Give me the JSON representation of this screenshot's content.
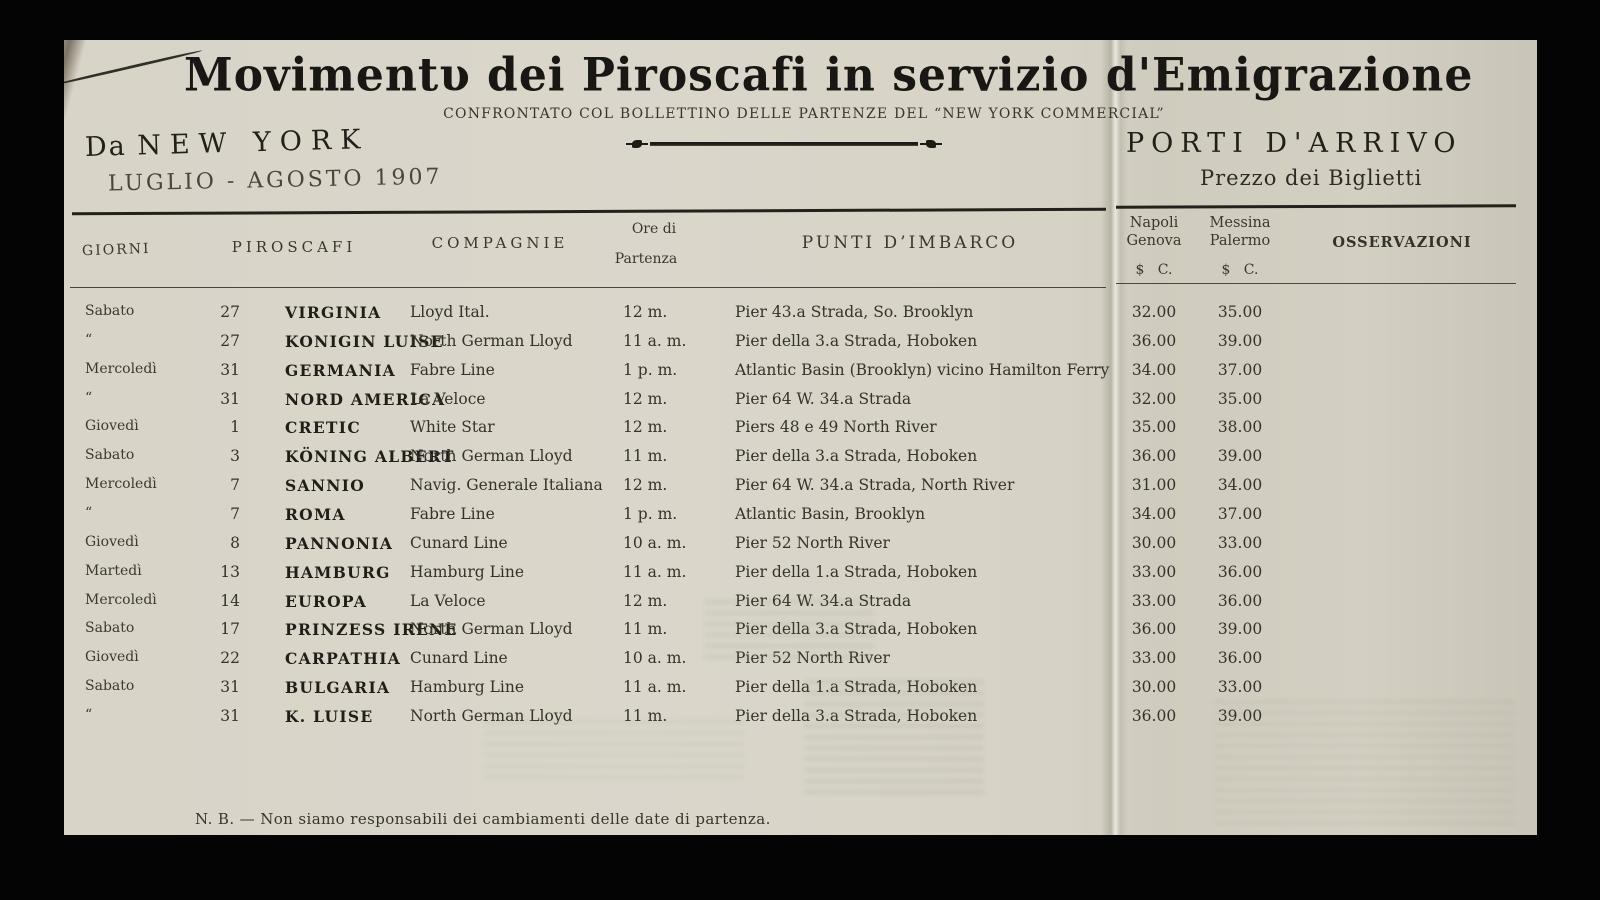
{
  "page": {
    "title": "Movimentυ dei Piroscafi in servizio d'Emigrazione",
    "subtitle": "CONFRONTATO COL BOLLETTINO DELLE PARTENZE DEL “NEW YORK COMMERCIAL”",
    "origin_prefix": "Da",
    "origin": "NEW YORK",
    "period": "LUGLIO - AGOSTO 1907",
    "arrival_title": "PORTI D'ARRIVO",
    "arrival_subtitle": "Prezzo dei Biglietti",
    "footnote": "N. B. — Non siamo responsabili dei cambiamenti delle date di partenza."
  },
  "table": {
    "headers": {
      "giorni": "GIORNI",
      "piroscafi": "PIROSCAFI",
      "compagnie": "COMPAGNIE",
      "ore_line1": "Ore di",
      "ore_line2": "Partenza",
      "punti": "PUNTI  D’IMBARCO",
      "price1_line1": "Napoli",
      "price1_line2": "Genova",
      "price2_line1": "Messina",
      "price2_line2": "Palermo",
      "currency": "$   C.",
      "osservazioni": "OSSERVAZIONI"
    },
    "rows": [
      {
        "day": "Sabato",
        "date": "27",
        "ship": "VIRGINIA",
        "company": "Lloyd Ital.",
        "time": "12 m.",
        "pier": "Pier 43.a Strada, So. Brooklyn",
        "napoli_genova": "32.00",
        "messina_palermo": "35.00",
        "osservazioni": ""
      },
      {
        "day": "“",
        "date": "27",
        "ship": "KONIGIN LUISE",
        "company": "North German Lloyd",
        "time": "11 a. m.",
        "pier": "Pier della 3.a Strada, Hoboken",
        "napoli_genova": "36.00",
        "messina_palermo": "39.00",
        "osservazioni": ""
      },
      {
        "day": "Mercoledì",
        "date": "31",
        "ship": "GERMANIA",
        "company": "Fabre Line",
        "time": "1 p. m.",
        "pier": "Atlantic Basin (Brooklyn) vicino Hamilton Ferry",
        "napoli_genova": "34.00",
        "messina_palermo": "37.00",
        "osservazioni": ""
      },
      {
        "day": "“",
        "date": "31",
        "ship": "NORD AMERICA",
        "company": "La Veloce",
        "time": "12 m.",
        "pier": "Pier 64 W. 34.a Strada",
        "napoli_genova": "32.00",
        "messina_palermo": "35.00",
        "osservazioni": ""
      },
      {
        "day": "Giovedì",
        "date": "1",
        "ship": "CRETIC",
        "company": "White Star",
        "time": "12 m.",
        "pier": "Piers 48 e 49 North River",
        "napoli_genova": "35.00",
        "messina_palermo": "38.00",
        "osservazioni": ""
      },
      {
        "day": "Sabato",
        "date": "3",
        "ship": "KÖNING ALBERT",
        "company": "North German Lloyd",
        "time": "11 m.",
        "pier": "Pier della 3.a Strada, Hoboken",
        "napoli_genova": "36.00",
        "messina_palermo": "39.00",
        "osservazioni": ""
      },
      {
        "day": "Mercoledì",
        "date": "7",
        "ship": "SANNIO",
        "company": "Navig. Generale Italiana",
        "time": "12 m.",
        "pier": "Pier 64 W. 34.a Strada, North River",
        "napoli_genova": "31.00",
        "messina_palermo": "34.00",
        "osservazioni": ""
      },
      {
        "day": "“",
        "date": "7",
        "ship": "ROMA",
        "company": "Fabre Line",
        "time": "1 p. m.",
        "pier": "Atlantic Basin, Brooklyn",
        "napoli_genova": "34.00",
        "messina_palermo": "37.00",
        "osservazioni": ""
      },
      {
        "day": "Giovedì",
        "date": "8",
        "ship": "PANNONIA",
        "company": "Cunard Line",
        "time": "10 a. m.",
        "pier": "Pier 52 North River",
        "napoli_genova": "30.00",
        "messina_palermo": "33.00",
        "osservazioni": ""
      },
      {
        "day": "Martedì",
        "date": "13",
        "ship": "HAMBURG",
        "company": "Hamburg Line",
        "time": "11 a. m.",
        "pier": "Pier della 1.a Strada, Hoboken",
        "napoli_genova": "33.00",
        "messina_palermo": "36.00",
        "osservazioni": ""
      },
      {
        "day": "Mercoledì",
        "date": "14",
        "ship": "EUROPA",
        "company": "La Veloce",
        "time": "12 m.",
        "pier": "Pier 64 W. 34.a Strada",
        "napoli_genova": "33.00",
        "messina_palermo": "36.00",
        "osservazioni": ""
      },
      {
        "day": "Sabato",
        "date": "17",
        "ship": "PRINZESS IRENE",
        "company": "North German Lloyd",
        "time": "11 m.",
        "pier": "Pier della 3.a Strada, Hoboken",
        "napoli_genova": "36.00",
        "messina_palermo": "39.00",
        "osservazioni": ""
      },
      {
        "day": "Giovedì",
        "date": "22",
        "ship": "CARPATHIA",
        "company": "Cunard Line",
        "time": "10 a. m.",
        "pier": "Pier 52 North River",
        "napoli_genova": "33.00",
        "messina_palermo": "36.00",
        "osservazioni": ""
      },
      {
        "day": "Sabato",
        "date": "31",
        "ship": "BULGARIA",
        "company": "Hamburg Line",
        "time": "11 a. m.",
        "pier": "Pier della 1.a Strada, Hoboken",
        "napoli_genova": "30.00",
        "messina_palermo": "33.00",
        "osservazioni": ""
      },
      {
        "day": "“",
        "date": "31",
        "ship": "K. LUISE",
        "company": "North German Lloyd",
        "time": "11 m.",
        "pier": "Pier della 3.a Strada, Hoboken",
        "napoli_genova": "36.00",
        "messina_palermo": "39.00",
        "osservazioni": ""
      }
    ]
  },
  "colors": {
    "paper": "#d7d3c7",
    "ink": "#33302a",
    "title_ink": "#191714",
    "border": "#040404",
    "bleed_tint": "#607054"
  }
}
